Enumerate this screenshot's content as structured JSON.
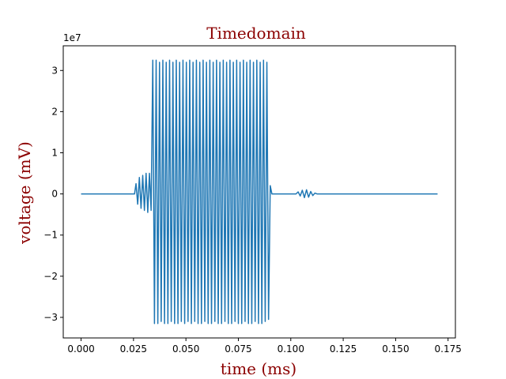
{
  "chart_data": {
    "type": "line",
    "title": "Timedomain",
    "xlabel": "time (ms)",
    "ylabel": "voltage (mV)",
    "y_multiplier_label": "1e7",
    "y_scale": 10000000,
    "xlim": [
      -0.0085,
      0.1785
    ],
    "ylim": [
      -35000000,
      36000000
    ],
    "x_ticks": [
      0.0,
      0.025,
      0.05,
      0.075,
      0.1,
      0.125,
      0.15,
      0.175
    ],
    "x_tick_labels": [
      "0.000",
      "0.025",
      "0.050",
      "0.075",
      "0.100",
      "0.125",
      "0.150",
      "0.175"
    ],
    "y_ticks": [
      -30000000,
      -20000000,
      -10000000,
      0,
      10000000,
      20000000,
      30000000
    ],
    "y_tick_labels": [
      "−3",
      "−2",
      "−1",
      "0",
      "1",
      "2",
      "3"
    ],
    "grid": false,
    "legend": "none",
    "series": [
      {
        "color": "#1f77b4",
        "x": [
          0.0,
          0.0255,
          0.0262,
          0.027,
          0.0278,
          0.0286,
          0.0294,
          0.0302,
          0.031,
          0.0318,
          0.0326,
          0.0334,
          0.0342,
          0.035,
          0.0358,
          0.0366,
          0.0374,
          0.0382,
          0.039,
          0.0398,
          0.0406,
          0.0414,
          0.0422,
          0.043,
          0.0438,
          0.0446,
          0.0454,
          0.0462,
          0.047,
          0.0478,
          0.0486,
          0.0494,
          0.0502,
          0.051,
          0.0518,
          0.0526,
          0.0534,
          0.0542,
          0.055,
          0.0558,
          0.0566,
          0.0574,
          0.0582,
          0.059,
          0.0598,
          0.0606,
          0.0614,
          0.0622,
          0.063,
          0.0638,
          0.0646,
          0.0654,
          0.0662,
          0.067,
          0.0678,
          0.0686,
          0.0694,
          0.0702,
          0.071,
          0.0718,
          0.0726,
          0.0734,
          0.0742,
          0.075,
          0.0758,
          0.0766,
          0.0774,
          0.0782,
          0.079,
          0.0798,
          0.0806,
          0.0814,
          0.0822,
          0.083,
          0.0838,
          0.0846,
          0.0854,
          0.0862,
          0.087,
          0.0878,
          0.0886,
          0.0894,
          0.0902,
          0.091,
          0.1025,
          0.1035,
          0.1045,
          0.1055,
          0.1065,
          0.1075,
          0.1085,
          0.1095,
          0.1105,
          0.1115,
          0.1125,
          0.17
        ],
        "y": [
          0,
          0,
          2500000,
          -2500000,
          4000000,
          -3500000,
          4500000,
          -4000000,
          5000000,
          -4500000,
          5000000,
          -4000000,
          32500000,
          -31500000,
          32500000,
          -31500000,
          32000000,
          -31000000,
          32500000,
          -31500000,
          32000000,
          -31500000,
          32500000,
          -31000000,
          32000000,
          -31500000,
          32500000,
          -31500000,
          32000000,
          -31000000,
          32500000,
          -31500000,
          32000000,
          -31000000,
          32500000,
          -31500000,
          32000000,
          -31000000,
          32500000,
          -31500000,
          32000000,
          -31500000,
          32500000,
          -31000000,
          32000000,
          -31500000,
          32500000,
          -31500000,
          32000000,
          -31000000,
          32500000,
          -31500000,
          32000000,
          -31500000,
          32500000,
          -31000000,
          32000000,
          -31500000,
          32500000,
          -31500000,
          32000000,
          -31000000,
          32500000,
          -31500000,
          32000000,
          -31500000,
          32500000,
          -31000000,
          32000000,
          -31500000,
          32500000,
          -31500000,
          32000000,
          -31000000,
          32500000,
          -31500000,
          32000000,
          -31500000,
          32500000,
          -31000000,
          32000000,
          -30500000,
          2000000,
          0,
          0,
          500000,
          -500000,
          900000,
          -900000,
          1000000,
          -800000,
          600000,
          -400000,
          200000,
          0,
          0
        ]
      }
    ]
  },
  "colors": {
    "title": "#8b0000",
    "axis_label": "#8b0000",
    "line": "#1f77b4"
  }
}
